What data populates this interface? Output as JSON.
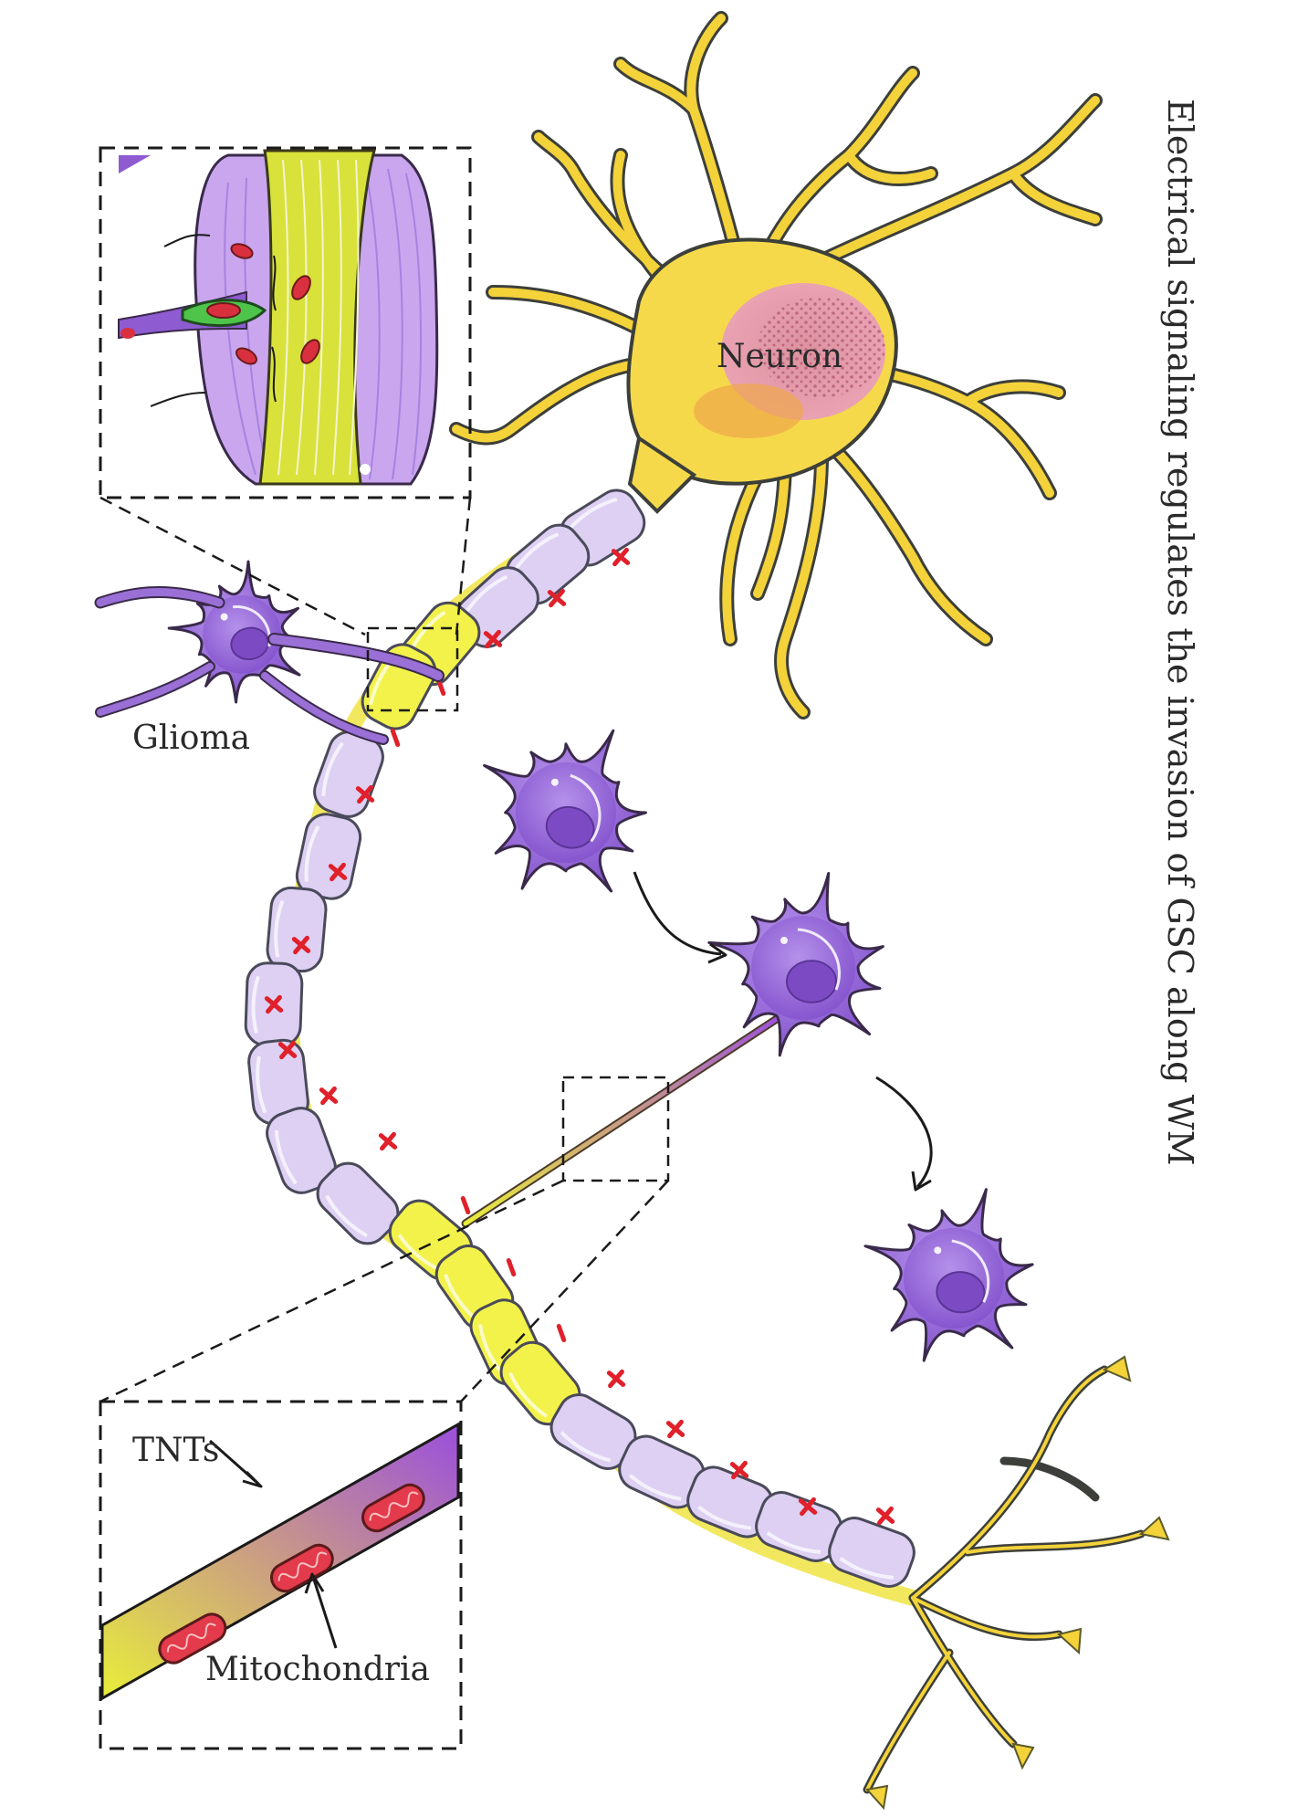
{
  "title": "Electrical signaling regulates the invasion of GSC along WM",
  "labels": {
    "neuron": "Neuron",
    "glioma": "Glioma",
    "tnts": "TNTs",
    "mitochondria": "Mitochondria"
  },
  "colors": {
    "neuron": "#f3d23a",
    "myelin": "#ddd0f3",
    "myelin_active": "#f2f24a",
    "glioma": "#9a6fd6",
    "mitochondria": "#d9303f",
    "charge": "#e0202a"
  },
  "icons": [
    "neuron-cell",
    "glioma-cell",
    "myelin-sheath",
    "mitochondria-icon",
    "plus-charge",
    "minus-charge",
    "arrow-icon"
  ]
}
